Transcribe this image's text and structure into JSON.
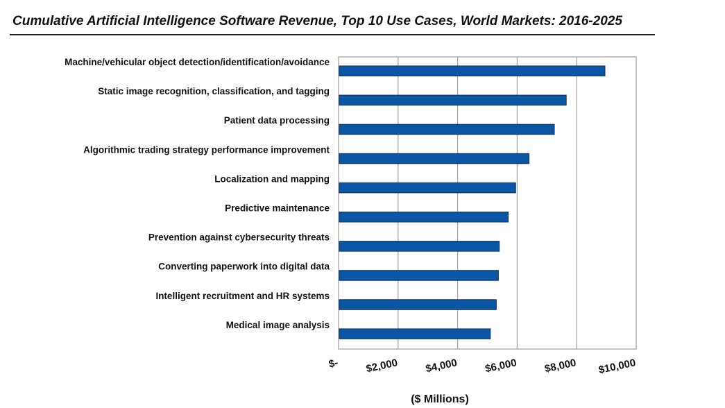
{
  "chart_data": {
    "type": "bar",
    "orientation": "horizontal",
    "title": "Cumulative Artificial Intelligence Software Revenue, Top 10 Use Cases, World Markets: 2016-2025",
    "xlabel": "($ Millions)",
    "ylabel": "",
    "categories": [
      "Machine/vehicular object detection/identification/avoidance",
      "Static image recognition, classification, and tagging",
      "Patient data processing",
      "Algorithmic trading strategy performance improvement",
      "Localization and mapping",
      "Predictive maintenance",
      "Prevention against cybersecurity threats",
      "Converting paperwork into digital data",
      "Intelligent recruitment and HR systems",
      "Medical image analysis"
    ],
    "values": [
      8950,
      7650,
      7250,
      6400,
      5950,
      5700,
      5400,
      5370,
      5300,
      5100
    ],
    "xlim": [
      0,
      10000
    ],
    "ticks": [
      0,
      2000,
      4000,
      6000,
      8000,
      10000
    ],
    "tick_labels": [
      "$-",
      "$2,000",
      "$4,000",
      "$6,000",
      "$8,000",
      "$10,000"
    ],
    "grid": true,
    "legend": "none",
    "colors": {
      "bar": "#0b56a4",
      "bar_edge": "#0a2f66",
      "grid": "#a0a0a0",
      "frame": "#b0b0b0"
    }
  }
}
